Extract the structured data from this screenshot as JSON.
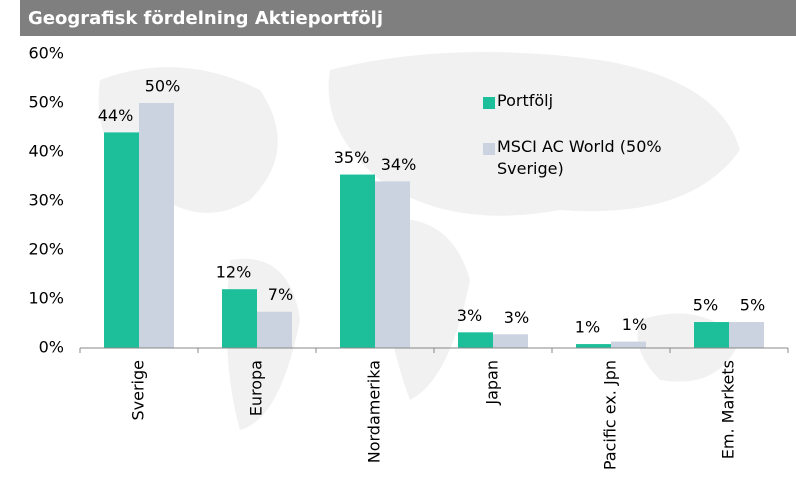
{
  "chart_data": {
    "type": "bar",
    "title": "Geografisk fördelning Aktieportfölj",
    "categories": [
      "Sverige",
      "Europa",
      "Nordamerika",
      "Japan",
      "Pacific ex. Jpn",
      "Em. Markets"
    ],
    "series": [
      {
        "name": "Portfölj",
        "color": "#1dbf9b",
        "values": [
          44,
          12,
          35.4,
          3.2,
          0.8,
          5.3
        ],
        "value_labels": [
          "44%",
          "12%",
          "35%",
          "3%",
          "1%",
          "5%"
        ]
      },
      {
        "name": "MSCI AC World (50% Sverige)",
        "color": "#ccd3e0",
        "values": [
          50,
          7.4,
          34,
          2.8,
          1.3,
          5.3
        ],
        "value_labels": [
          "50%",
          "7%",
          "34%",
          "3%",
          "1%",
          "5%"
        ]
      }
    ],
    "ylim": [
      0,
      60
    ],
    "yticks": [
      {
        "value": 0,
        "label": "0%"
      },
      {
        "value": 10,
        "label": "10%"
      },
      {
        "value": 20,
        "label": "20%"
      },
      {
        "value": 30,
        "label": "30%"
      },
      {
        "value": 40,
        "label": "40%"
      },
      {
        "value": 50,
        "label": "50%"
      },
      {
        "value": 60,
        "label": "60%"
      }
    ],
    "legend": "right"
  }
}
